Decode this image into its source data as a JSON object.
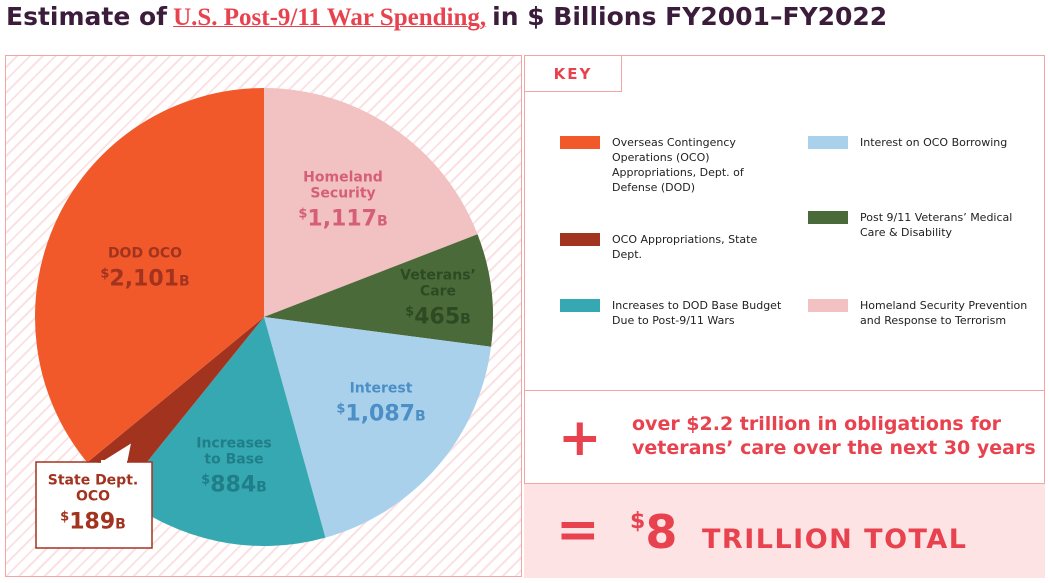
{
  "chart_data": {
    "type": "pie",
    "title": [
      "Estimate of",
      "U.S. Post-9/11 War Spending,",
      "in $ Billions FY2001–FY2022"
    ],
    "categories": [
      "Homeland\nSecurity",
      "Veterans’\nCare",
      "Interest",
      "Increases\nto Base",
      "State Dept.\nOCO",
      "DOD OCO"
    ],
    "values": [
      1117,
      465,
      1087,
      884,
      189,
      2101
    ],
    "value_labels": [
      "$1,117B",
      "$465B",
      "$1,087B",
      "$884B",
      "$189B",
      "$2,101B"
    ],
    "colors": [
      "#f2c1c1",
      "#4b6a3a",
      "#a9d1eb",
      "#36a8b1",
      "#a2331f",
      "#f1592a"
    ],
    "legend": {
      "title": "KEY",
      "items": [
        {
          "name": "Overseas Contingency Operations (OCO) Appropriations, Dept. of Defense (DOD)",
          "color": "#f1592a"
        },
        {
          "name": "OCO Appropriations, State Dept.",
          "color": "#a2331f"
        },
        {
          "name": "Increases to DOD Base Budget Due to Post-9/11 Wars",
          "color": "#36a8b1"
        },
        {
          "name": "Interest on OCO Borrowing",
          "color": "#a9d1eb"
        },
        {
          "name": "Post 9/11 Veterans’ Medical Care & Disability",
          "color": "#4b6a3a"
        },
        {
          "name": "Homeland Security Prevention and Response to Terrorism",
          "color": "#f2c1c1"
        }
      ]
    },
    "addendum": {
      "symbol": "+",
      "text": "over $2.2 trillion in obligations for\nveterans’ care over the next 30 years"
    },
    "total": {
      "symbol": "=",
      "amount": "$8",
      "label": "TRILLION TOTAL"
    }
  }
}
